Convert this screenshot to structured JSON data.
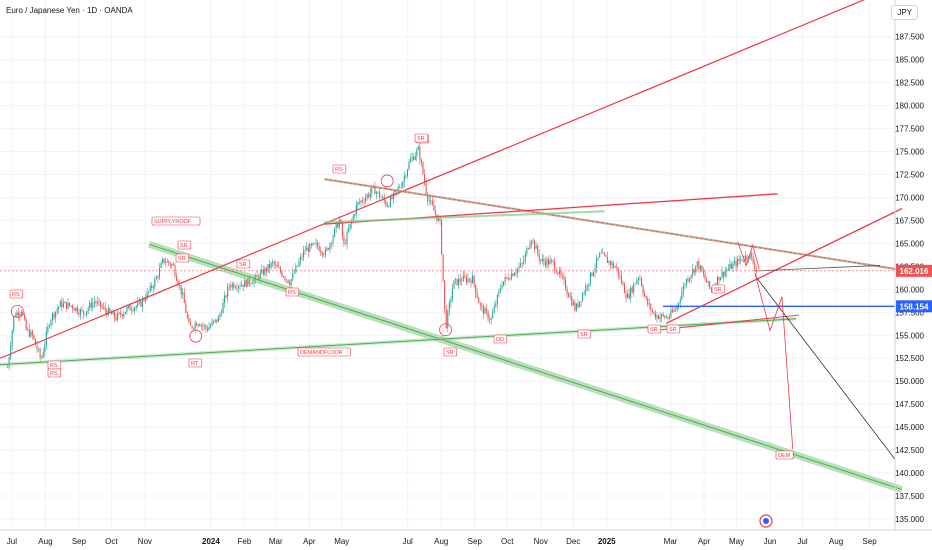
{
  "header": {
    "title": "Euro / Japanese Yen · 1D · OANDA",
    "currency": "JPY"
  },
  "price_badges": {
    "last": "162.016",
    "level": "158.154"
  },
  "colors": {
    "up": "#26a69a",
    "down": "#ef5350",
    "trend_red": "#f23645",
    "zone_green": "#4caf50",
    "level_blue": "#2962ff",
    "projection_black": "#131722"
  },
  "chart_data": {
    "type": "candlestick",
    "title": "Euro / Japanese Yen · 1D · OANDA",
    "ylim": [
      133.8,
      191.5
    ],
    "yticks": [
      "187.500",
      "185.000",
      "182.500",
      "180.000",
      "177.500",
      "175.000",
      "172.500",
      "170.000",
      "167.500",
      "165.000",
      "162.500",
      "160.000",
      "157.500",
      "155.000",
      "152.500",
      "150.000",
      "147.500",
      "145.000",
      "142.500",
      "140.000",
      "137.500",
      "135.000"
    ],
    "xticks": [
      "Jul",
      "Aug",
      "Sep",
      "Oct",
      "Nov",
      "2024",
      "Feb",
      "Mar",
      "Apr",
      "May",
      "Jul",
      "Aug",
      "Sep",
      "Oct",
      "Nov",
      "Dec",
      "2025",
      "Mar",
      "Apr",
      "May",
      "Jun",
      "Jul",
      "Aug",
      "Sep"
    ],
    "price_series": [
      [
        "2023-06-27",
        151.5
      ],
      [
        "2023-07-03",
        157.2
      ],
      [
        "2023-07-10",
        157.8
      ],
      [
        "2023-07-14",
        155.6
      ],
      [
        "2023-07-20",
        154.9
      ],
      [
        "2023-07-28",
        152.3
      ],
      [
        "2023-08-05",
        156.7
      ],
      [
        "2023-08-15",
        158.4
      ],
      [
        "2023-08-25",
        158.2
      ],
      [
        "2023-09-05",
        157.4
      ],
      [
        "2023-09-15",
        158.7
      ],
      [
        "2023-09-27",
        157.6
      ],
      [
        "2023-10-05",
        156.9
      ],
      [
        "2023-10-16",
        157.9
      ],
      [
        "2023-10-27",
        158.3
      ],
      [
        "2023-11-05",
        159.8
      ],
      [
        "2023-11-12",
        161.3
      ],
      [
        "2023-11-18",
        163.2
      ],
      [
        "2023-11-27",
        162.6
      ],
      [
        "2023-12-06",
        159.2
      ],
      [
        "2023-12-12",
        155.8
      ],
      [
        "2023-12-20",
        156.5
      ],
      [
        "2023-12-28",
        155.7
      ],
      [
        "2024-01-08",
        156.8
      ],
      [
        "2024-01-18",
        160.5
      ],
      [
        "2024-01-31",
        160.6
      ],
      [
        "2024-02-12",
        161.2
      ],
      [
        "2024-02-27",
        162.8
      ],
      [
        "2024-03-07",
        161.7
      ],
      [
        "2024-03-14",
        160.8
      ],
      [
        "2024-03-28",
        164.3
      ],
      [
        "2024-04-08",
        164.8
      ],
      [
        "2024-04-16",
        163.9
      ],
      [
        "2024-04-29",
        167.6
      ],
      [
        "2024-05-03",
        164.8
      ],
      [
        "2024-05-15",
        169.2
      ],
      [
        "2024-05-31",
        170.9
      ],
      [
        "2024-06-12",
        169.2
      ],
      [
        "2024-06-18",
        170.1
      ],
      [
        "2024-06-26",
        171.7
      ],
      [
        "2024-07-03",
        174.0
      ],
      [
        "2024-07-11",
        175.2
      ],
      [
        "2024-07-19",
        170.1
      ],
      [
        "2024-07-31",
        167.1
      ],
      [
        "2024-08-05",
        155.8
      ],
      [
        "2024-08-12",
        160.6
      ],
      [
        "2024-08-20",
        161.1
      ],
      [
        "2024-08-30",
        161.1
      ],
      [
        "2024-09-06",
        158.1
      ],
      [
        "2024-09-16",
        156.7
      ],
      [
        "2024-09-26",
        160.7
      ],
      [
        "2024-10-04",
        161.6
      ],
      [
        "2024-10-15",
        162.7
      ],
      [
        "2024-10-23",
        165.7
      ],
      [
        "2024-11-01",
        163.1
      ],
      [
        "2024-11-12",
        162.9
      ],
      [
        "2024-11-22",
        160.8
      ],
      [
        "2024-12-03",
        157.8
      ],
      [
        "2024-12-12",
        160.1
      ],
      [
        "2024-12-26",
        163.8
      ],
      [
        "2025-01-10",
        162.3
      ],
      [
        "2025-01-20",
        159.1
      ],
      [
        "2025-01-31",
        161.6
      ],
      [
        "2025-02-06",
        158.8
      ],
      [
        "2025-02-14",
        157.2
      ],
      [
        "2025-02-26",
        156.9
      ],
      [
        "2025-03-06",
        157.9
      ],
      [
        "2025-03-15",
        160.9
      ],
      [
        "2025-03-26",
        162.8
      ],
      [
        "2025-04-07",
        159.9
      ],
      [
        "2025-04-15",
        161.4
      ],
      [
        "2025-04-25",
        162.4
      ],
      [
        "2025-05-06",
        163.3
      ],
      [
        "2025-05-13",
        163.8
      ],
      [
        "2025-05-20",
        162.0
      ]
    ],
    "trend_lines": [
      {
        "name": "upper channel",
        "from": [
          "2023-06-20",
          152.5
        ],
        "to": [
          "2025-09-20",
          192.7
        ]
      },
      {
        "name": "SUPPLYROOF",
        "from": [
          "2023-11-05",
          164.9
        ],
        "to": [
          "2025-10-01",
          138.2
        ]
      },
      {
        "name": "DEMANDFLOOR",
        "from": [
          "2023-06-20",
          151.8
        ],
        "to": [
          "2025-06-25",
          156.8
        ]
      },
      {
        "name": "descending resistance",
        "from": [
          "2024-04-15",
          172.0
        ],
        "to": [
          "2025-10-01",
          162.1
        ]
      },
      {
        "name": "ascending support",
        "from": [
          "2025-02-25",
          156.3
        ],
        "to": [
          "2025-10-01",
          168.8
        ]
      },
      {
        "name": "horizontal level",
        "from": [
          "2025-02-22",
          158.15
        ],
        "to": [
          "2025-10-01",
          158.15
        ]
      }
    ],
    "annotations": [
      "SUPPLYROOF",
      "DEMANDFLOOR",
      "DEM",
      "RS",
      "SR",
      "SR",
      "RS",
      "RS",
      "RS",
      "RS",
      "RS",
      "RT",
      "SR",
      "DD",
      "SR",
      "SR",
      "SR",
      "SR",
      "SR",
      "SR"
    ]
  }
}
